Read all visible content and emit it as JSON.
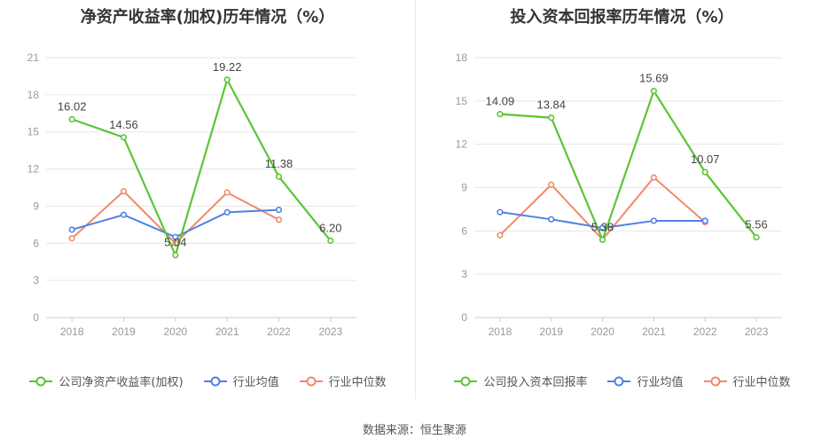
{
  "source_text": "数据来源：恒生聚源",
  "colors": {
    "company": "#5ac635",
    "avg": "#4f81e6",
    "median": "#f08a6a",
    "grid": "#e6e6e6",
    "axis": "#999999",
    "label": "#444444"
  },
  "chart_data": [
    {
      "type": "line",
      "title": "净资产收益率(加权)历年情况（%）",
      "categories": [
        "2018",
        "2019",
        "2020",
        "2021",
        "2022",
        "2023"
      ],
      "ylim": [
        0,
        21
      ],
      "yticks": [
        0,
        3,
        6,
        9,
        12,
        15,
        18,
        21
      ],
      "grid": true,
      "legend_position": "bottom",
      "series": [
        {
          "name": "公司净资产收益率(加权)",
          "key": "company",
          "values": [
            16.02,
            14.56,
            5.04,
            19.22,
            11.38,
            6.2
          ],
          "labels": [
            "16.02",
            "14.56",
            "5.04",
            "19.22",
            "11.38",
            "6.20"
          ]
        },
        {
          "name": "行业均值",
          "key": "avg",
          "values": [
            7.1,
            8.3,
            6.5,
            8.5,
            8.7,
            null
          ],
          "labels": null
        },
        {
          "name": "行业中位数",
          "key": "median",
          "values": [
            6.4,
            10.2,
            6.0,
            10.1,
            7.9,
            null
          ],
          "labels": null
        }
      ]
    },
    {
      "type": "line",
      "title": "投入资本回报率历年情况（%）",
      "categories": [
        "2018",
        "2019",
        "2020",
        "2021",
        "2022",
        "2023"
      ],
      "ylim": [
        0,
        18
      ],
      "yticks": [
        0,
        3,
        6,
        9,
        12,
        15,
        18
      ],
      "grid": true,
      "legend_position": "bottom",
      "series": [
        {
          "name": "公司投入资本回报率",
          "key": "company",
          "values": [
            14.09,
            13.84,
            5.38,
            15.69,
            10.07,
            5.56
          ],
          "labels": [
            "14.09",
            "13.84",
            "5.38",
            "15.69",
            "10.07",
            "5.56"
          ]
        },
        {
          "name": "行业均值",
          "key": "avg",
          "values": [
            7.3,
            6.8,
            6.2,
            6.7,
            6.7,
            null
          ],
          "labels": null
        },
        {
          "name": "行业中位数",
          "key": "median",
          "values": [
            5.7,
            9.2,
            5.4,
            9.7,
            6.6,
            null
          ],
          "labels": null
        }
      ]
    }
  ]
}
